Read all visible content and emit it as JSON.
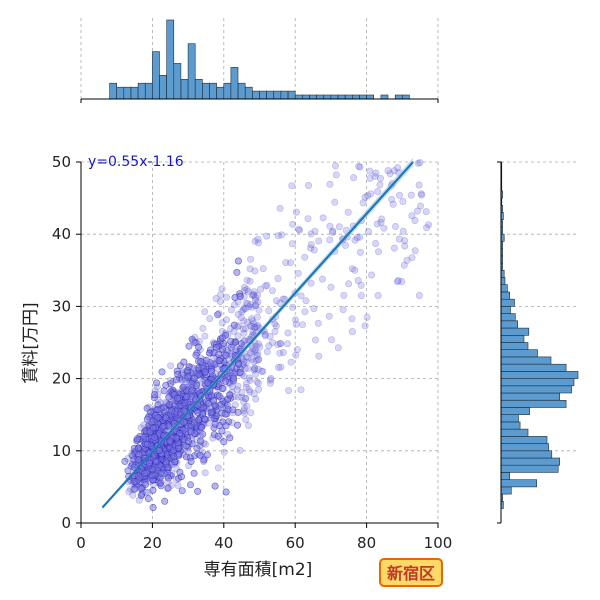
{
  "chart_data": {
    "type": "scatter",
    "xlabel": "専有面積[m2]",
    "ylabel": "賃料[万円]",
    "xlim": [
      0,
      100
    ],
    "ylim": [
      0,
      50
    ],
    "x_ticks": [
      0,
      20,
      40,
      60,
      80,
      100
    ],
    "y_ticks": [
      0,
      10,
      20,
      30,
      40,
      50
    ],
    "grid": true,
    "annotation": "y=0.55x-1.16",
    "badge": "新宿区",
    "regression": {
      "slope": 0.55,
      "intercept": -1.16,
      "x_range": [
        6,
        93
      ]
    },
    "marginal_x_histogram": {
      "bin_start": 8,
      "bin_width": 2,
      "counts": [
        4,
        3,
        3,
        3,
        4,
        4,
        12,
        6,
        20,
        9,
        5,
        14,
        5,
        4,
        4,
        3,
        4,
        8,
        4,
        3,
        2,
        2,
        2,
        2,
        2,
        2,
        1,
        1,
        1,
        1,
        1,
        1,
        1,
        1,
        1,
        1,
        1,
        0,
        1,
        0,
        1,
        1,
        0,
        0,
        0,
        0
      ]
    },
    "marginal_y_histogram": {
      "bin_start": 2,
      "bin_width": 1,
      "counts": [
        0.3,
        0.2,
        1.3,
        4.5,
        1.1,
        7.2,
        7.4,
        6.4,
        6.0,
        5.8,
        3.4,
        2.4,
        2.2,
        3.6,
        8.2,
        7.4,
        8.9,
        9.2,
        9.7,
        8.2,
        6.3,
        4.6,
        3.4,
        2.9,
        3.5,
        2.1,
        1.8,
        1.2,
        1.7,
        1.1,
        0.8,
        0.5,
        0.4,
        0.2,
        0.2,
        0.2,
        0.2,
        0.4,
        0.2,
        0.2,
        0.3,
        0.2,
        0.1,
        0.2,
        0.1,
        0.1,
        0.1,
        0.1
      ]
    },
    "colors": {
      "scatter_fill": "#7b78e0",
      "scatter_edge": "#1b16b8",
      "regression_line": "#1f77b4",
      "regression_band": "#9ec5e8",
      "histogram_fill": "#5b9bd0",
      "histogram_edge": "#1f2d3d",
      "annotation_text": "#1a16c8",
      "badge_fill": "#ffd966",
      "badge_border": "#e66a00",
      "badge_text": "#c0392b",
      "grid": "#aaaaaa"
    }
  }
}
